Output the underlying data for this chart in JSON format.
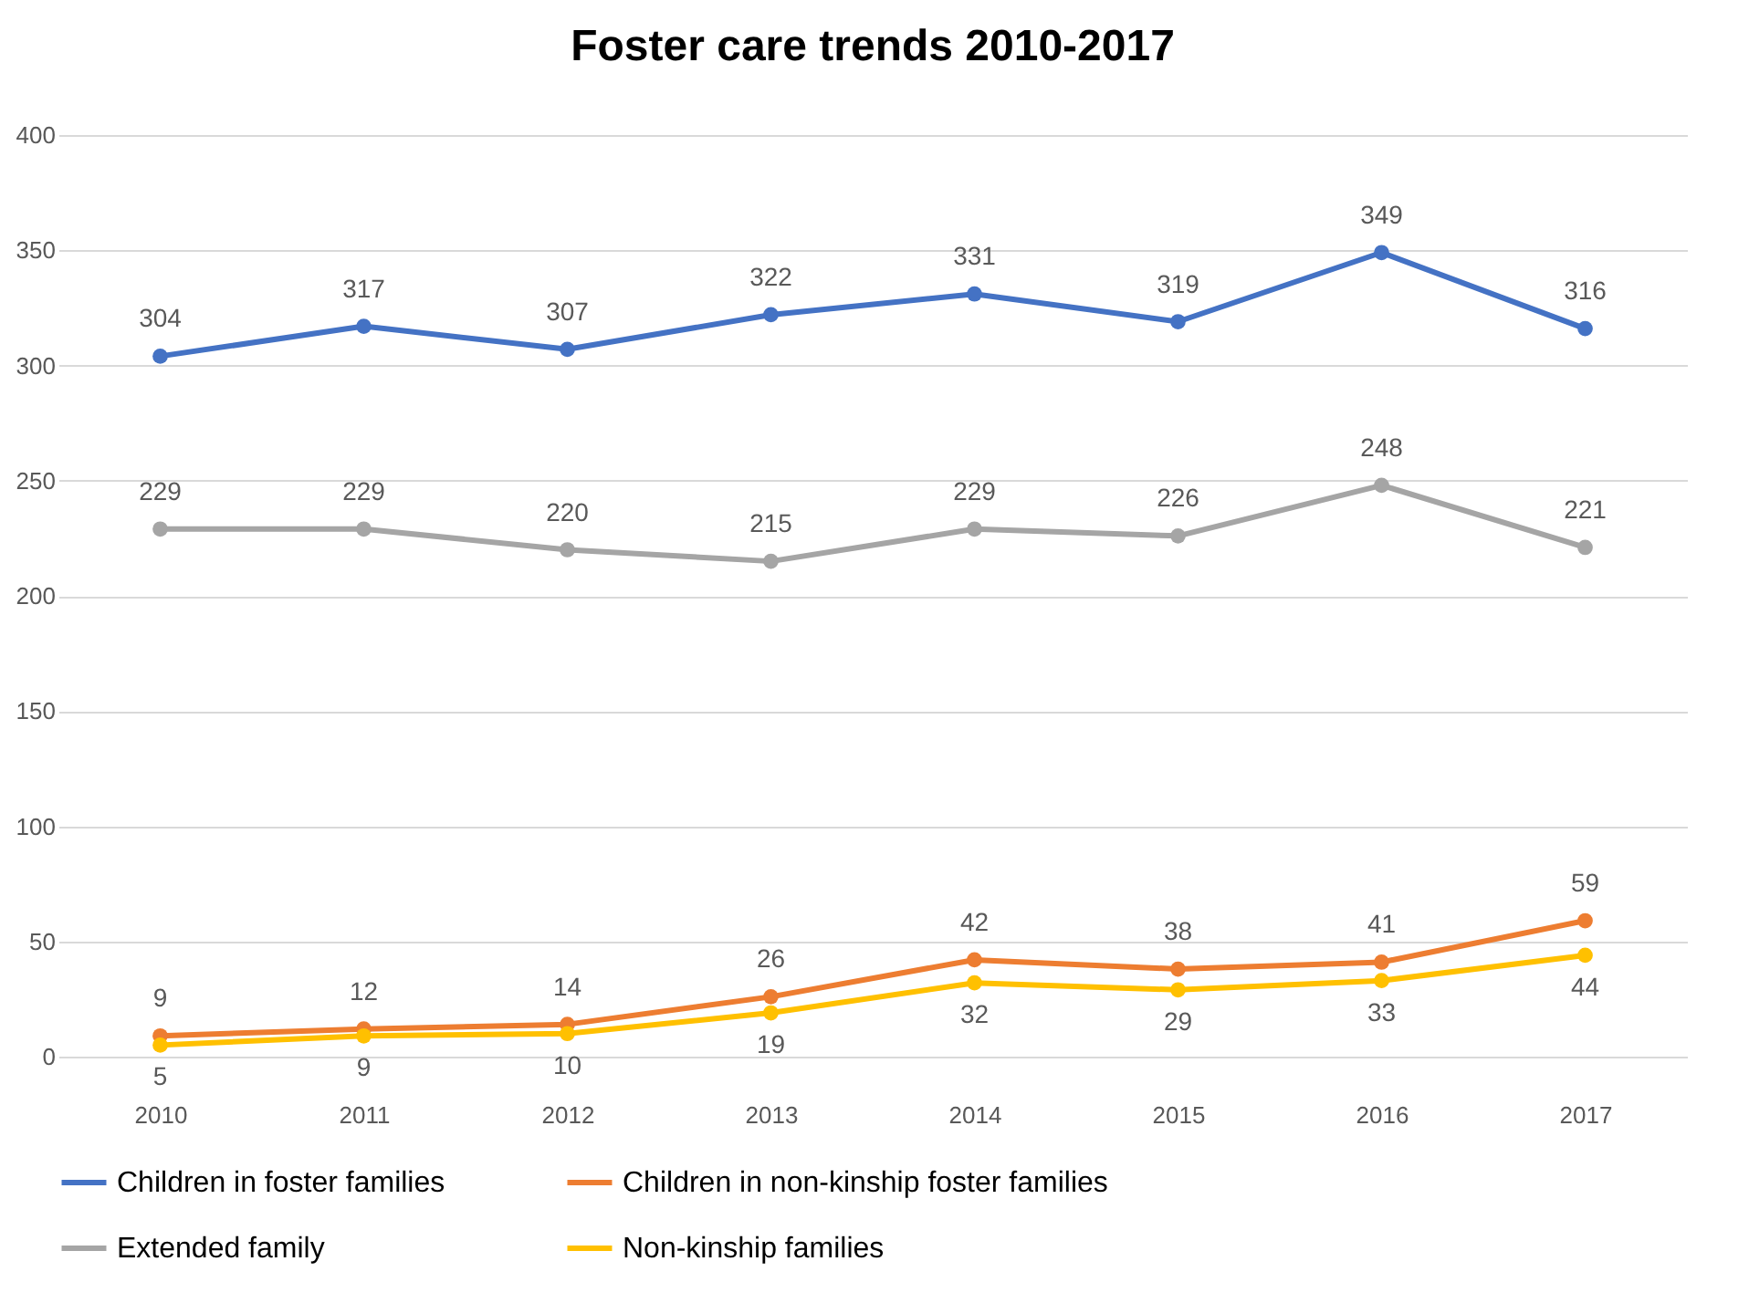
{
  "chart_data": {
    "type": "line",
    "title": "Foster care trends 2010-2017",
    "categories": [
      "2010",
      "2011",
      "2012",
      "2013",
      "2014",
      "2015",
      "2016",
      "2017"
    ],
    "series": [
      {
        "name": "Children in foster families",
        "color": "#4472c4",
        "values": [
          304,
          317,
          307,
          322,
          331,
          319,
          349,
          316
        ]
      },
      {
        "name": "Children in non-kinship foster families",
        "color": "#ed7d31",
        "values": [
          9,
          12,
          14,
          26,
          42,
          38,
          41,
          59
        ]
      },
      {
        "name": "Extended family",
        "color": "#a5a5a5",
        "values": [
          229,
          229,
          220,
          215,
          229,
          226,
          248,
          221
        ]
      },
      {
        "name": "Non-kinship families",
        "color": "#ffc000",
        "values": [
          5,
          9,
          10,
          19,
          32,
          29,
          33,
          44
        ]
      }
    ],
    "ylim": [
      0,
      400
    ],
    "yticks": [
      0,
      50,
      100,
      150,
      200,
      250,
      300,
      350,
      400
    ],
    "grid": "y",
    "legend": "bottom",
    "marker": "circle",
    "data_labels": true
  }
}
